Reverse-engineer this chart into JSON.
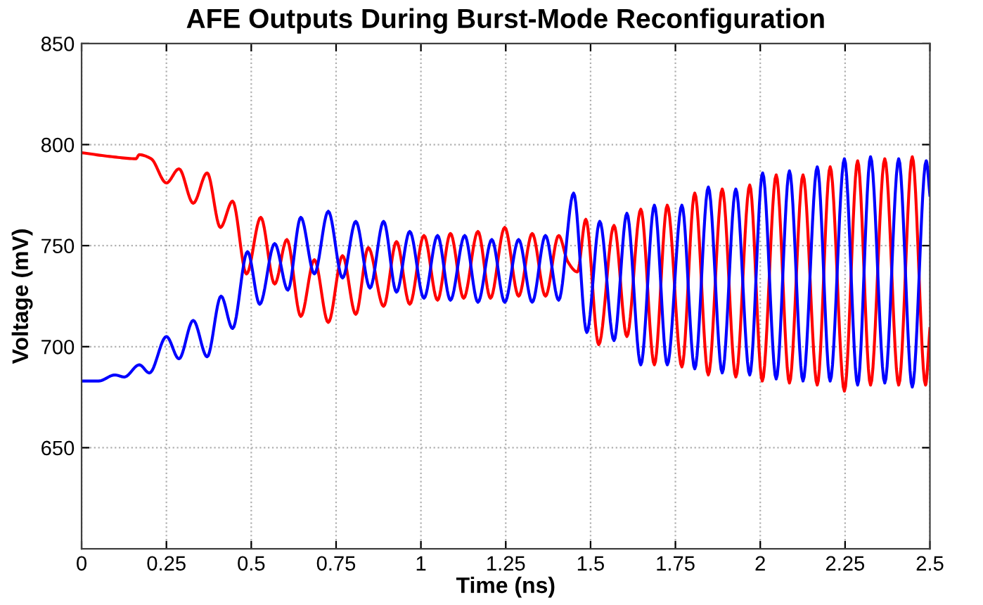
{
  "chart_data": {
    "type": "line",
    "title": "AFE Outputs During Burst-Mode Reconfiguration",
    "xlabel": "Time (ns)",
    "ylabel": "Voltage (mV)",
    "xlim": [
      0,
      2.5
    ],
    "xticks": [
      0,
      0.25,
      0.5,
      0.75,
      1,
      1.25,
      1.5,
      1.75,
      2,
      2.25,
      2.5
    ],
    "ylim": [
      600,
      850
    ],
    "yticks": [
      650,
      700,
      750,
      800,
      850
    ],
    "grid": true,
    "legend": false,
    "line_style": "solid",
    "marker": "none",
    "series": [
      {
        "color": "#ff0000",
        "x": [
          0,
          0.09,
          0.16,
          0.17,
          0.205,
          0.25,
          0.287,
          0.329,
          0.37,
          0.409,
          0.445,
          0.486,
          0.528,
          0.569,
          0.605,
          0.646,
          0.686,
          0.727,
          0.769,
          0.808,
          0.845,
          0.89,
          0.928,
          0.967,
          1.009,
          1.049,
          1.087,
          1.126,
          1.168,
          1.205,
          1.247,
          1.288,
          1.328,
          1.367,
          1.406,
          1.433,
          1.461,
          1.486,
          1.524,
          1.569,
          1.607,
          1.648,
          1.688,
          1.726,
          1.769,
          1.807,
          1.847,
          1.888,
          1.928,
          1.969,
          2.006,
          2.047,
          2.086,
          2.126,
          2.168,
          2.206,
          2.248,
          2.287,
          2.325,
          2.367,
          2.408,
          2.448,
          2.487,
          2.5
        ],
        "values": [
          796,
          794,
          793,
          795,
          793,
          781,
          788,
          771,
          786,
          759,
          772,
          736,
          764,
          731,
          753,
          715,
          743,
          712,
          745,
          716,
          749,
          720,
          752,
          721,
          755,
          723,
          756,
          724,
          757,
          724,
          759,
          725,
          756,
          725,
          755,
          742,
          737,
          763,
          701,
          760,
          705,
          768,
          691,
          770,
          690,
          776,
          686,
          778,
          685,
          780,
          683,
          785,
          682,
          785,
          681,
          789,
          678,
          792,
          681,
          793,
          681,
          794,
          681,
          709
        ]
      },
      {
        "color": "#0000ff",
        "x": [
          0,
          0.05,
          0.098,
          0.126,
          0.17,
          0.2,
          0.25,
          0.287,
          0.329,
          0.37,
          0.411,
          0.445,
          0.489,
          0.525,
          0.569,
          0.608,
          0.646,
          0.686,
          0.727,
          0.769,
          0.808,
          0.85,
          0.89,
          0.928,
          0.967,
          1.009,
          1.049,
          1.087,
          1.129,
          1.168,
          1.209,
          1.247,
          1.288,
          1.328,
          1.367,
          1.406,
          1.45,
          1.489,
          1.527,
          1.569,
          1.607,
          1.648,
          1.688,
          1.726,
          1.769,
          1.807,
          1.847,
          1.888,
          1.928,
          1.969,
          2.007,
          2.047,
          2.086,
          2.126,
          2.168,
          2.206,
          2.248,
          2.287,
          2.325,
          2.367,
          2.408,
          2.448,
          2.489,
          2.5
        ],
        "values": [
          683,
          683,
          686,
          685,
          691,
          687,
          705,
          694,
          713,
          695,
          725,
          709,
          747,
          721,
          751,
          728,
          764,
          736,
          767,
          734,
          762,
          729,
          762,
          727,
          757,
          724,
          755,
          723,
          755,
          722,
          753,
          722,
          753,
          722,
          755,
          723,
          776,
          707,
          762,
          703,
          766,
          691,
          770,
          691,
          770,
          689,
          779,
          687,
          778,
          686,
          786,
          684,
          787,
          683,
          789,
          683,
          793,
          681,
          794,
          682,
          793,
          680,
          792,
          775
        ]
      }
    ]
  }
}
